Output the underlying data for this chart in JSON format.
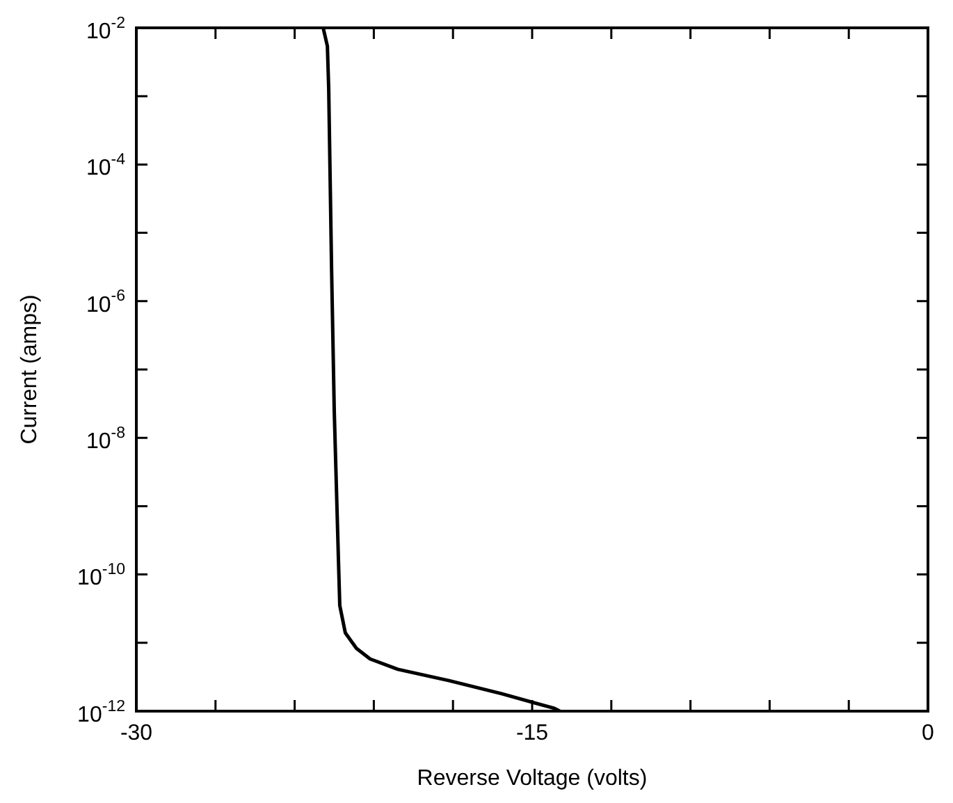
{
  "chart_data": {
    "type": "line",
    "xlabel": "Reverse Voltage (volts)",
    "ylabel": "Current (amps)",
    "x": [
      -22.92,
      -22.76,
      -22.71,
      -22.6,
      -22.5,
      -22.34,
      -22.29,
      -22.08,
      -21.66,
      -21.14,
      -20.09,
      -18.15,
      -16.16,
      -14.16,
      -13.95
    ],
    "series": [
      {
        "color": "#000000",
        "values": [
          0.01,
          0.0054,
          0.0013,
          2.8e-06,
          2.5e-08,
          1.6e-10,
          3.5e-11,
          1.4e-11,
          8.3e-12,
          5.8e-12,
          4.1e-12,
          2.8e-12,
          1.8e-12,
          1.1e-12,
          1e-12
        ]
      }
    ],
    "log": "y",
    "grid": false,
    "legend": false,
    "marker": "none",
    "line_style": "solid",
    "xlim": [
      -30,
      0
    ],
    "ylim": [
      1e-12,
      0.01
    ],
    "xticks": [
      -30,
      {
        "value": -27,
        "label": null
      },
      {
        "value": -24,
        "label": null
      },
      {
        "value": -21,
        "label": null
      },
      {
        "value": -18,
        "label": null
      },
      -15,
      {
        "value": -12,
        "label": null
      },
      {
        "value": -9,
        "label": null
      },
      {
        "value": -6,
        "label": null
      },
      {
        "value": -3,
        "label": null
      },
      0
    ],
    "yticks": [
      {
        "value": 1e-12,
        "label": "10$^{-12}$"
      },
      {
        "value": 1e-11,
        "label": null
      },
      {
        "value": 1e-10,
        "label": "10$^{-10}$"
      },
      {
        "value": 1e-09,
        "label": null
      },
      {
        "value": 1e-08,
        "label": "10$^{-8}$"
      },
      {
        "value": 1e-07,
        "label": null
      },
      {
        "value": 1e-06,
        "label": "10$^{-6}$"
      },
      {
        "value": 1e-05,
        "label": null
      },
      {
        "value": 0.0001,
        "label": "10$^{-4}$"
      },
      {
        "value": 0.001,
        "label": null
      },
      {
        "value": 0.01,
        "label": "10$^{-2}$"
      }
    ]
  }
}
